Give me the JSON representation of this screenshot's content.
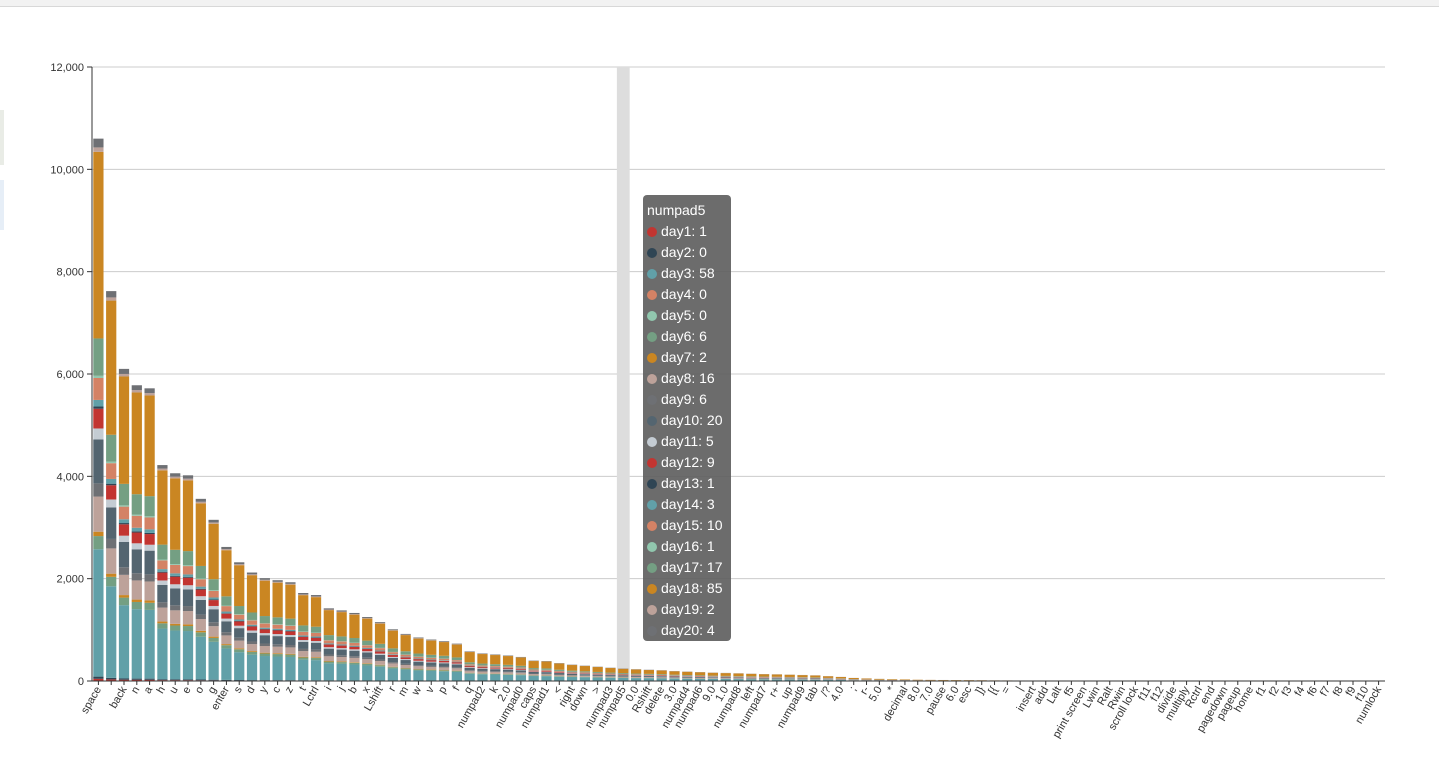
{
  "chart_data": {
    "type": "bar",
    "stacked": true,
    "ylim": [
      0,
      12000
    ],
    "yticks": [
      0,
      2000,
      4000,
      6000,
      8000,
      10000,
      12000
    ],
    "grid": true,
    "series_names": [
      "day1",
      "day2",
      "day3",
      "day4",
      "day5",
      "day6",
      "day7",
      "day8",
      "day9",
      "day10",
      "day11",
      "day12",
      "day13",
      "day14",
      "day15",
      "day16",
      "day17",
      "day18",
      "day19",
      "day20"
    ],
    "colors": [
      "#c23531",
      "#2f4554",
      "#61a0a8",
      "#d48265",
      "#91c7ae",
      "#749f83",
      "#ca8622",
      "#bda29a",
      "#6e7074",
      "#546570",
      "#c4ccd3",
      "#c23531",
      "#2f4554",
      "#61a0a8",
      "#d48265",
      "#91c7ae",
      "#749f83",
      "#ca8622",
      "#bda29a",
      "#6e7074"
    ],
    "profile_weights": [
      1,
      1,
      58,
      0,
      0,
      6,
      2,
      16,
      6,
      20,
      5,
      9,
      1,
      3,
      10,
      1,
      17,
      85,
      2,
      4
    ],
    "categories": [
      {
        "label": "space",
        "total": 10600,
        "shown": true
      },
      {
        "label": ",",
        "total": 7620,
        "shown": false
      },
      {
        "label": "back",
        "total": 6100,
        "shown": true
      },
      {
        "label": "n",
        "total": 5780,
        "shown": true
      },
      {
        "label": "a",
        "total": 5720,
        "shown": true
      },
      {
        "label": "h",
        "total": 4220,
        "shown": true
      },
      {
        "label": "u",
        "total": 4060,
        "shown": true
      },
      {
        "label": "e",
        "total": 4020,
        "shown": true
      },
      {
        "label": "o",
        "total": 3560,
        "shown": true
      },
      {
        "label": "g",
        "total": 3150,
        "shown": true
      },
      {
        "label": "enter",
        "total": 2620,
        "shown": true
      },
      {
        "label": "s",
        "total": 2320,
        "shown": true
      },
      {
        "label": "d",
        "total": 2120,
        "shown": true
      },
      {
        "label": "y",
        "total": 2010,
        "shown": true
      },
      {
        "label": "c",
        "total": 1970,
        "shown": true
      },
      {
        "label": "z",
        "total": 1930,
        "shown": true
      },
      {
        "label": "t",
        "total": 1720,
        "shown": true
      },
      {
        "label": "Lctrl",
        "total": 1680,
        "shown": true
      },
      {
        "label": "i",
        "total": 1420,
        "shown": true
      },
      {
        "label": "j",
        "total": 1380,
        "shown": true
      },
      {
        "label": "b",
        "total": 1330,
        "shown": true
      },
      {
        "label": "x",
        "total": 1250,
        "shown": true
      },
      {
        "label": "Lshift",
        "total": 1150,
        "shown": true
      },
      {
        "label": "r",
        "total": 1010,
        "shown": true
      },
      {
        "label": "m",
        "total": 920,
        "shown": true
      },
      {
        "label": "w",
        "total": 850,
        "shown": true
      },
      {
        "label": "v",
        "total": 810,
        "shown": true
      },
      {
        "label": "p",
        "total": 780,
        "shown": true
      },
      {
        "label": "f",
        "total": 730,
        "shown": true
      },
      {
        "label": "q",
        "total": 580,
        "shown": true
      },
      {
        "label": "numpad2",
        "total": 540,
        "shown": true
      },
      {
        "label": "k",
        "total": 520,
        "shown": true
      },
      {
        "label": "2.0",
        "total": 500,
        "shown": true
      },
      {
        "label": "numpad0",
        "total": 470,
        "shown": true
      },
      {
        "label": "caps",
        "total": 400,
        "shown": true
      },
      {
        "label": "numpad1",
        "total": 390,
        "shown": true
      },
      {
        "label": "<",
        "total": 350,
        "shown": true
      },
      {
        "label": "right",
        "total": 320,
        "shown": true
      },
      {
        "label": "down",
        "total": 300,
        "shown": true
      },
      {
        "label": ">",
        "total": 280,
        "shown": true
      },
      {
        "label": "numpad3",
        "total": 260,
        "shown": true
      },
      {
        "label": "numpad5",
        "total": 245,
        "shown": true
      },
      {
        "label": "0.0",
        "total": 230,
        "shown": true
      },
      {
        "label": "Rshift",
        "total": 220,
        "shown": true
      },
      {
        "label": "delete",
        "total": 210,
        "shown": true
      },
      {
        "label": "3.0",
        "total": 195,
        "shown": true
      },
      {
        "label": "numpad4",
        "total": 185,
        "shown": true
      },
      {
        "label": "numpad6",
        "total": 175,
        "shown": true
      },
      {
        "label": "9.0",
        "total": 165,
        "shown": true
      },
      {
        "label": "1.0",
        "total": 158,
        "shown": true
      },
      {
        "label": "numpad8",
        "total": 150,
        "shown": true
      },
      {
        "label": "left",
        "total": 143,
        "shown": true
      },
      {
        "label": "numpad7",
        "total": 136,
        "shown": true
      },
      {
        "label": "r+",
        "total": 130,
        "shown": true
      },
      {
        "label": "up",
        "total": 125,
        "shown": true
      },
      {
        "label": "numpad9",
        "total": 118,
        "shown": true
      },
      {
        "label": "tab",
        "total": 110,
        "shown": true
      },
      {
        "label": "/?",
        "total": 95,
        "shown": true
      },
      {
        "label": "4.0",
        "total": 80,
        "shown": true
      },
      {
        "label": ";",
        "total": 60,
        "shown": true
      },
      {
        "label": "r-",
        "total": 50,
        "shown": true
      },
      {
        "label": "5.0",
        "total": 42,
        "shown": true
      },
      {
        "label": "*",
        "total": 36,
        "shown": true
      },
      {
        "label": "decimal",
        "total": 30,
        "shown": true
      },
      {
        "label": "8.0",
        "total": 25,
        "shown": true
      },
      {
        "label": "7.0",
        "total": 22,
        "shown": true
      },
      {
        "label": "pause",
        "total": 20,
        "shown": true
      },
      {
        "label": "6.0",
        "total": 18,
        "shown": true
      },
      {
        "label": "esc",
        "total": 16,
        "shown": true
      },
      {
        "label": "]}",
        "total": 14,
        "shown": true
      },
      {
        "label": "[{",
        "total": 12,
        "shown": true
      },
      {
        "label": "=",
        "total": 11,
        "shown": true
      },
      {
        "label": "|",
        "total": 10,
        "shown": true
      },
      {
        "label": "insert",
        "total": 9,
        "shown": true
      },
      {
        "label": "add",
        "total": 8,
        "shown": true
      },
      {
        "label": "Lalt",
        "total": 8,
        "shown": true
      },
      {
        "label": "f5",
        "total": 7,
        "shown": true
      },
      {
        "label": "print screen",
        "total": 7,
        "shown": true
      },
      {
        "label": "Lwin",
        "total": 6,
        "shown": true
      },
      {
        "label": "Ralt",
        "total": 6,
        "shown": true
      },
      {
        "label": "Rwin",
        "total": 5,
        "shown": true
      },
      {
        "label": "scroll lock",
        "total": 5,
        "shown": true
      },
      {
        "label": "f11",
        "total": 5,
        "shown": true
      },
      {
        "label": "f12",
        "total": 4,
        "shown": true
      },
      {
        "label": "divide",
        "total": 4,
        "shown": true
      },
      {
        "label": "multiply",
        "total": 4,
        "shown": true
      },
      {
        "label": "Rctrl",
        "total": 3,
        "shown": true
      },
      {
        "label": "end",
        "total": 3,
        "shown": true
      },
      {
        "label": "pagedown",
        "total": 3,
        "shown": true
      },
      {
        "label": "pageup",
        "total": 3,
        "shown": true
      },
      {
        "label": "home",
        "total": 2,
        "shown": true
      },
      {
        "label": "f1",
        "total": 2,
        "shown": true
      },
      {
        "label": "f2",
        "total": 2,
        "shown": true
      },
      {
        "label": "f3",
        "total": 2,
        "shown": true
      },
      {
        "label": "f4",
        "total": 2,
        "shown": true
      },
      {
        "label": "f6",
        "total": 1,
        "shown": true
      },
      {
        "label": "f7",
        "total": 1,
        "shown": true
      },
      {
        "label": "f8",
        "total": 1,
        "shown": true
      },
      {
        "label": "f9",
        "total": 1,
        "shown": true
      },
      {
        "label": "f10",
        "total": 1,
        "shown": true
      },
      {
        "label": "numlock",
        "total": 1,
        "shown": true
      }
    ],
    "highlight_index": 41
  },
  "tooltip": {
    "title": "numpad5",
    "rows": [
      {
        "label": "day1: 1",
        "color": "#c23531"
      },
      {
        "label": "day2: 0",
        "color": "#2f4554"
      },
      {
        "label": "day3: 58",
        "color": "#61a0a8"
      },
      {
        "label": "day4: 0",
        "color": "#d48265"
      },
      {
        "label": "day5: 0",
        "color": "#91c7ae"
      },
      {
        "label": "day6: 6",
        "color": "#749f83"
      },
      {
        "label": "day7: 2",
        "color": "#ca8622"
      },
      {
        "label": "day8: 16",
        "color": "#bda29a"
      },
      {
        "label": "day9: 6",
        "color": "#6e7074"
      },
      {
        "label": "day10: 20",
        "color": "#546570"
      },
      {
        "label": "day11: 5",
        "color": "#c4ccd3"
      },
      {
        "label": "day12: 9",
        "color": "#c23531"
      },
      {
        "label": "day13: 1",
        "color": "#2f4554"
      },
      {
        "label": "day14: 3",
        "color": "#61a0a8"
      },
      {
        "label": "day15: 10",
        "color": "#d48265"
      },
      {
        "label": "day16: 1",
        "color": "#91c7ae"
      },
      {
        "label": "day17: 17",
        "color": "#749f83"
      },
      {
        "label": "day18: 85",
        "color": "#ca8622"
      },
      {
        "label": "day19: 2",
        "color": "#bda29a"
      },
      {
        "label": "day20: 4",
        "color": "#6e7074"
      }
    ]
  }
}
